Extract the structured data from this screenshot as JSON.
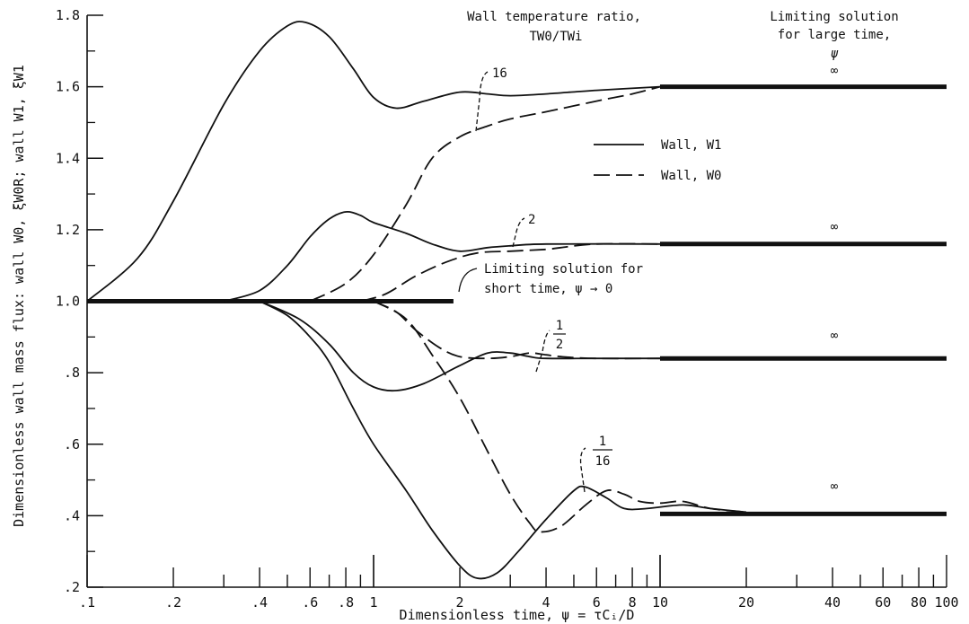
{
  "chart_data": {
    "type": "line",
    "xscale": "log",
    "xlim": [
      0.1,
      100
    ],
    "ylim": [
      0.2,
      1.8
    ],
    "xlabel": "Dimensionless time, ψ = τCᵢ/D",
    "ylabel": "Dimensionless wall mass flux: wall W0, ξW0R; wall W1, ξW1",
    "xticks": [
      {
        "value": 0.1,
        "label": ".1"
      },
      {
        "value": 0.2,
        "label": ".2"
      },
      {
        "value": 0.4,
        "label": ".4"
      },
      {
        "value": 0.6,
        "label": ".6"
      },
      {
        "value": 0.8,
        "label": ".8"
      },
      {
        "value": 1,
        "label": "1"
      },
      {
        "value": 2,
        "label": "2"
      },
      {
        "value": 4,
        "label": "4"
      },
      {
        "value": 6,
        "label": "6"
      },
      {
        "value": 8,
        "label": "8"
      },
      {
        "value": 10,
        "label": "10"
      },
      {
        "value": 20,
        "label": "20"
      },
      {
        "value": 40,
        "label": "40"
      },
      {
        "value": 60,
        "label": "60"
      },
      {
        "value": 80,
        "label": "80"
      },
      {
        "value": 100,
        "label": "100"
      }
    ],
    "yticks": [
      {
        "value": 1.8,
        "label": "1.8"
      },
      {
        "value": 1.6,
        "label": "1.6"
      },
      {
        "value": 1.4,
        "label": "1.4"
      },
      {
        "value": 1.2,
        "label": "1.2"
      },
      {
        "value": 1.0,
        "label": "1.0"
      },
      {
        "value": 0.8,
        "label": ".8"
      },
      {
        "value": 0.6,
        "label": ".6"
      },
      {
        "value": 0.4,
        "label": ".4"
      },
      {
        "value": 0.2,
        "label": ".2"
      }
    ],
    "legend": {
      "position": "right",
      "entries": [
        {
          "label": "Wall, W1",
          "style": "solid"
        },
        {
          "label": "Wall, W0",
          "style": "dashed"
        }
      ]
    },
    "series": [
      {
        "ratio": "16",
        "style": "solid",
        "points": [
          [
            0.1,
            1.0
          ],
          [
            0.15,
            1.12
          ],
          [
            0.2,
            1.28
          ],
          [
            0.3,
            1.55
          ],
          [
            0.4,
            1.7
          ],
          [
            0.5,
            1.77
          ],
          [
            0.58,
            1.78
          ],
          [
            0.7,
            1.74
          ],
          [
            0.85,
            1.65
          ],
          [
            1.0,
            1.57
          ],
          [
            1.2,
            1.54
          ],
          [
            1.5,
            1.56
          ],
          [
            2.0,
            1.585
          ],
          [
            2.5,
            1.58
          ],
          [
            3.0,
            1.575
          ],
          [
            4.0,
            1.58
          ],
          [
            6.0,
            1.59
          ],
          [
            10,
            1.6
          ]
        ]
      },
      {
        "ratio": "16",
        "style": "dashed",
        "points": [
          [
            0.6,
            1.0
          ],
          [
            0.8,
            1.05
          ],
          [
            1.0,
            1.13
          ],
          [
            1.3,
            1.27
          ],
          [
            1.6,
            1.4
          ],
          [
            2.0,
            1.46
          ],
          [
            2.5,
            1.49
          ],
          [
            3.0,
            1.51
          ],
          [
            4.0,
            1.53
          ],
          [
            6.0,
            1.56
          ],
          [
            8.0,
            1.58
          ],
          [
            10,
            1.6
          ]
        ]
      },
      {
        "ratio": "2",
        "style": "solid",
        "points": [
          [
            0.3,
            1.0
          ],
          [
            0.4,
            1.03
          ],
          [
            0.5,
            1.1
          ],
          [
            0.6,
            1.18
          ],
          [
            0.7,
            1.23
          ],
          [
            0.8,
            1.25
          ],
          [
            0.9,
            1.24
          ],
          [
            1.0,
            1.22
          ],
          [
            1.3,
            1.19
          ],
          [
            1.6,
            1.16
          ],
          [
            2.0,
            1.14
          ],
          [
            2.5,
            1.15
          ],
          [
            3.0,
            1.155
          ],
          [
            4.0,
            1.16
          ],
          [
            10,
            1.16
          ]
        ]
      },
      {
        "ratio": "2",
        "style": "dashed",
        "points": [
          [
            0.9,
            1.0
          ],
          [
            1.1,
            1.02
          ],
          [
            1.4,
            1.07
          ],
          [
            1.8,
            1.11
          ],
          [
            2.3,
            1.135
          ],
          [
            3.0,
            1.14
          ],
          [
            4.0,
            1.145
          ],
          [
            4.5,
            1.15
          ],
          [
            6.0,
            1.16
          ],
          [
            10,
            1.16
          ]
        ]
      },
      {
        "ratio": "1/2",
        "style": "solid",
        "points": [
          [
            0.4,
            1.0
          ],
          [
            0.55,
            0.95
          ],
          [
            0.7,
            0.88
          ],
          [
            0.85,
            0.8
          ],
          [
            1.0,
            0.76
          ],
          [
            1.2,
            0.75
          ],
          [
            1.5,
            0.77
          ],
          [
            2.0,
            0.82
          ],
          [
            2.5,
            0.855
          ],
          [
            3.0,
            0.855
          ],
          [
            3.5,
            0.845
          ],
          [
            4.0,
            0.84
          ],
          [
            6.0,
            0.84
          ],
          [
            10,
            0.84
          ]
        ]
      },
      {
        "ratio": "1/2",
        "style": "dashed",
        "points": [
          [
            1.0,
            1.0
          ],
          [
            1.2,
            0.97
          ],
          [
            1.4,
            0.92
          ],
          [
            1.7,
            0.87
          ],
          [
            2.0,
            0.845
          ],
          [
            2.5,
            0.84
          ],
          [
            3.0,
            0.845
          ],
          [
            3.5,
            0.855
          ],
          [
            4.0,
            0.85
          ],
          [
            4.5,
            0.845
          ],
          [
            6.0,
            0.84
          ],
          [
            10,
            0.84
          ]
        ]
      },
      {
        "ratio": "1/16",
        "style": "solid",
        "points": [
          [
            0.4,
            1.0
          ],
          [
            0.5,
            0.96
          ],
          [
            0.6,
            0.9
          ],
          [
            0.7,
            0.83
          ],
          [
            0.85,
            0.7
          ],
          [
            1.0,
            0.6
          ],
          [
            1.3,
            0.47
          ],
          [
            1.6,
            0.36
          ],
          [
            2.0,
            0.26
          ],
          [
            2.3,
            0.225
          ],
          [
            2.7,
            0.24
          ],
          [
            3.2,
            0.3
          ],
          [
            4.0,
            0.39
          ],
          [
            5.0,
            0.47
          ],
          [
            5.5,
            0.48
          ],
          [
            6.5,
            0.45
          ],
          [
            7.5,
            0.42
          ],
          [
            9.0,
            0.42
          ],
          [
            12,
            0.43
          ],
          [
            15,
            0.42
          ],
          [
            20,
            0.41
          ]
        ]
      },
      {
        "ratio": "1/16",
        "style": "dashed",
        "points": [
          [
            1.0,
            1.0
          ],
          [
            1.3,
            0.95
          ],
          [
            1.6,
            0.85
          ],
          [
            2.0,
            0.73
          ],
          [
            2.5,
            0.58
          ],
          [
            3.0,
            0.46
          ],
          [
            3.5,
            0.38
          ],
          [
            3.8,
            0.355
          ],
          [
            4.5,
            0.37
          ],
          [
            5.5,
            0.43
          ],
          [
            6.5,
            0.47
          ],
          [
            7.5,
            0.46
          ],
          [
            8.5,
            0.44
          ],
          [
            10,
            0.435
          ],
          [
            12,
            0.44
          ],
          [
            15,
            0.42
          ],
          [
            20,
            0.41
          ]
        ]
      }
    ],
    "limiting_short_time": {
      "value": 1.0,
      "x_range": [
        0.1,
        1.9
      ]
    },
    "limiting_large_time": [
      {
        "value": 1.6,
        "x_range": [
          10,
          100
        ]
      },
      {
        "value": 1.16,
        "x_range": [
          10,
          100
        ]
      },
      {
        "value": 0.84,
        "x_range": [
          10,
          100
        ]
      },
      {
        "value": 0.405,
        "x_range": [
          10,
          100
        ]
      }
    ],
    "annotations": {
      "wall_temp_title": "Wall temperature ratio,",
      "wall_temp_symbol": "TW0/TWi",
      "ratio_16": "16",
      "ratio_2": "2",
      "ratio_half_num": "1",
      "ratio_half_den": "2",
      "ratio_16th_num": "1",
      "ratio_16th_den": "16",
      "short_time_line1": "Limiting solution for",
      "short_time_line2": "short time, ψ → 0",
      "large_time_line1": "Limiting solution",
      "large_time_line2": "for large time,",
      "large_time_line3": "ψ",
      "infinity": "∞"
    }
  }
}
